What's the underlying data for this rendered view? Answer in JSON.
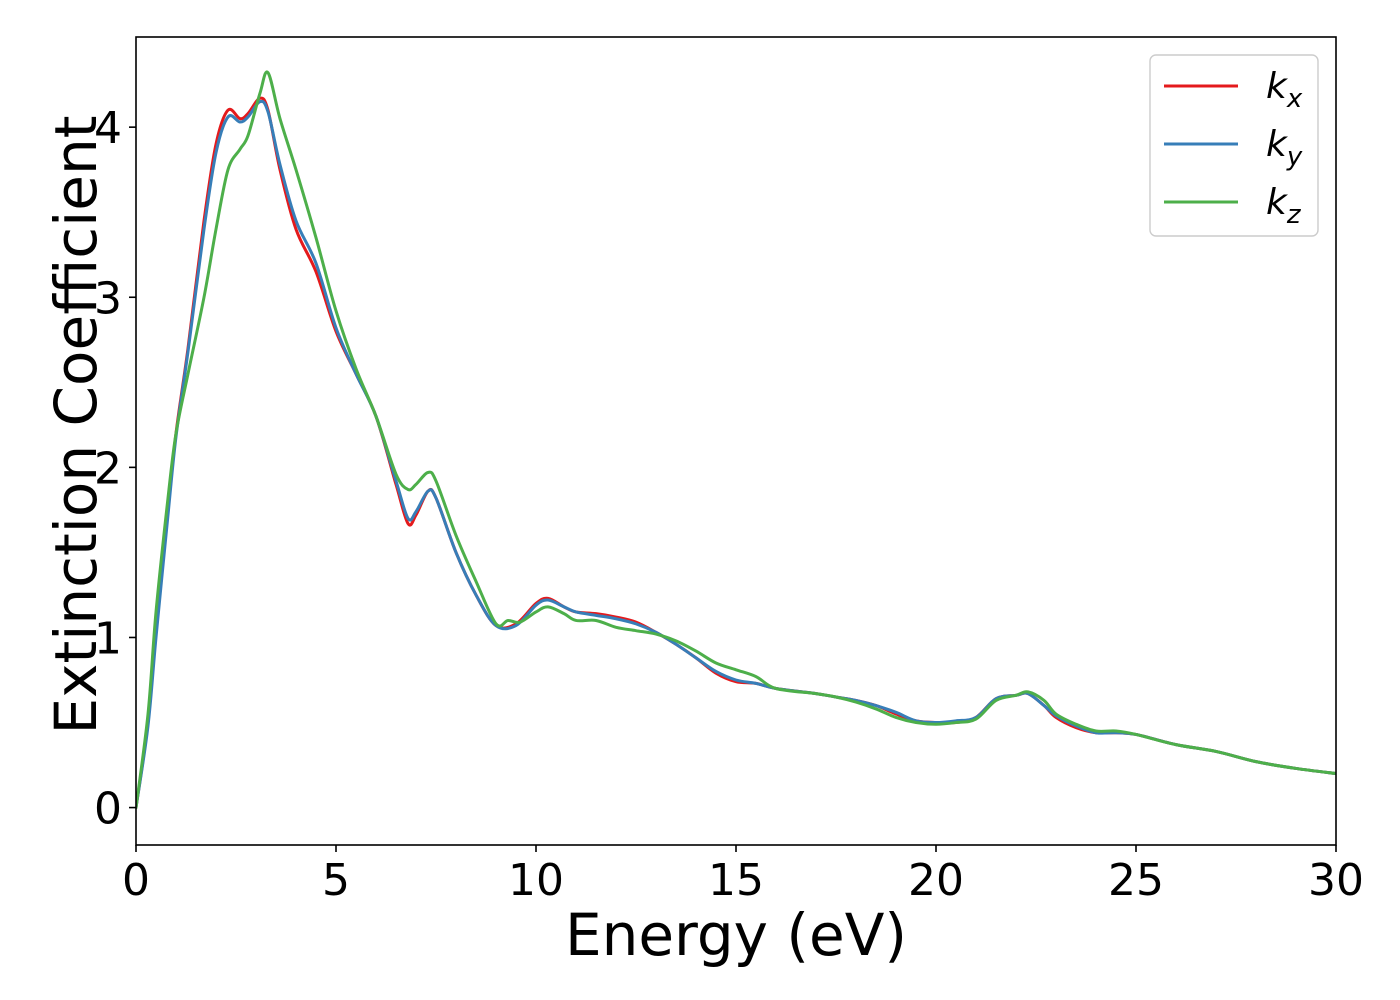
{
  "chart_data": {
    "type": "line",
    "title": "",
    "xlabel": "Energy (eV)",
    "ylabel": "Extinction Coefficient",
    "xlim": [
      0,
      30
    ],
    "ylim": [
      -0.22,
      4.53
    ],
    "xticks": [
      0,
      5,
      10,
      15,
      20,
      25,
      30
    ],
    "yticks": [
      0,
      1,
      2,
      3,
      4
    ],
    "grid": false,
    "legend_position": "top-right",
    "series": [
      {
        "name": "k_x",
        "legend_base": "k",
        "legend_sub": "x",
        "color": "#e41a1c",
        "x": [
          0,
          0.3,
          0.5,
          0.8,
          1.0,
          1.3,
          1.7,
          2.0,
          2.3,
          2.6,
          2.8,
          3.1,
          3.3,
          3.6,
          4.0,
          4.5,
          5.0,
          5.5,
          6.0,
          6.5,
          6.8,
          7.0,
          7.3,
          7.5,
          8.0,
          8.5,
          9.0,
          9.5,
          10.0,
          10.3,
          10.7,
          11.0,
          11.5,
          12.0,
          12.5,
          13.0,
          13.5,
          14.0,
          14.5,
          15.0,
          15.5,
          16.0,
          17.0,
          17.5,
          18.0,
          18.5,
          19.0,
          19.5,
          20.0,
          20.5,
          21.0,
          21.5,
          22.0,
          22.3,
          22.7,
          23.0,
          23.5,
          24.0,
          24.5,
          25.0,
          26.0,
          27.0,
          28.0,
          29.0,
          30.0
        ],
        "y": [
          0.0,
          0.5,
          1.05,
          1.75,
          2.2,
          2.7,
          3.45,
          3.9,
          4.1,
          4.05,
          4.08,
          4.17,
          4.1,
          3.75,
          3.4,
          3.15,
          2.8,
          2.55,
          2.3,
          1.9,
          1.67,
          1.72,
          1.86,
          1.82,
          1.5,
          1.25,
          1.07,
          1.08,
          1.2,
          1.23,
          1.18,
          1.15,
          1.14,
          1.12,
          1.09,
          1.03,
          0.96,
          0.88,
          0.79,
          0.74,
          0.73,
          0.7,
          0.67,
          0.65,
          0.63,
          0.6,
          0.55,
          0.51,
          0.5,
          0.5,
          0.53,
          0.64,
          0.66,
          0.67,
          0.6,
          0.53,
          0.47,
          0.44,
          0.44,
          0.43,
          0.37,
          0.33,
          0.27,
          0.23,
          0.2
        ]
      },
      {
        "name": "k_y",
        "legend_base": "k",
        "legend_sub": "y",
        "color": "#377eb8",
        "x": [
          0,
          0.3,
          0.5,
          0.8,
          1.0,
          1.3,
          1.7,
          2.0,
          2.3,
          2.6,
          2.8,
          3.1,
          3.3,
          3.6,
          4.0,
          4.5,
          5.0,
          5.5,
          6.0,
          6.5,
          6.8,
          7.0,
          7.3,
          7.5,
          8.0,
          8.5,
          9.0,
          9.5,
          10.0,
          10.3,
          10.7,
          11.0,
          11.5,
          12.0,
          12.5,
          13.0,
          13.5,
          14.0,
          14.5,
          15.0,
          15.5,
          16.0,
          17.0,
          17.5,
          18.0,
          18.5,
          19.0,
          19.5,
          20.0,
          20.5,
          21.0,
          21.5,
          22.0,
          22.3,
          22.7,
          23.0,
          23.5,
          24.0,
          24.5,
          25.0,
          26.0,
          27.0,
          28.0,
          29.0,
          30.0
        ],
        "y": [
          0.0,
          0.48,
          1.0,
          1.72,
          2.18,
          2.68,
          3.4,
          3.85,
          4.06,
          4.03,
          4.06,
          4.15,
          4.09,
          3.78,
          3.45,
          3.2,
          2.82,
          2.55,
          2.3,
          1.92,
          1.7,
          1.74,
          1.86,
          1.82,
          1.5,
          1.25,
          1.07,
          1.07,
          1.19,
          1.22,
          1.18,
          1.15,
          1.13,
          1.11,
          1.08,
          1.03,
          0.96,
          0.88,
          0.8,
          0.75,
          0.73,
          0.7,
          0.67,
          0.65,
          0.63,
          0.6,
          0.56,
          0.51,
          0.5,
          0.51,
          0.53,
          0.64,
          0.66,
          0.67,
          0.6,
          0.54,
          0.48,
          0.44,
          0.44,
          0.43,
          0.37,
          0.33,
          0.27,
          0.23,
          0.2
        ]
      },
      {
        "name": "k_z",
        "legend_base": "k",
        "legend_sub": "z",
        "color": "#4daf4a",
        "x": [
          0,
          0.3,
          0.5,
          0.8,
          1.0,
          1.3,
          1.7,
          2.0,
          2.3,
          2.6,
          2.8,
          3.1,
          3.3,
          3.6,
          4.0,
          4.5,
          5.0,
          5.5,
          6.0,
          6.5,
          6.8,
          7.0,
          7.3,
          7.5,
          8.0,
          8.5,
          9.0,
          9.3,
          9.6,
          10.0,
          10.3,
          10.7,
          11.0,
          11.5,
          12.0,
          12.5,
          13.0,
          13.5,
          14.0,
          14.5,
          15.0,
          15.5,
          16.0,
          17.0,
          17.5,
          18.0,
          18.5,
          19.0,
          19.5,
          20.0,
          20.5,
          21.0,
          21.5,
          22.0,
          22.3,
          22.7,
          23.0,
          23.5,
          24.0,
          24.5,
          25.0,
          26.0,
          27.0,
          28.0,
          29.0,
          30.0
        ],
        "y": [
          0.0,
          0.55,
          1.15,
          1.82,
          2.2,
          2.55,
          3.0,
          3.4,
          3.75,
          3.87,
          3.95,
          4.2,
          4.32,
          4.05,
          3.75,
          3.35,
          2.92,
          2.58,
          2.3,
          1.96,
          1.87,
          1.9,
          1.97,
          1.92,
          1.6,
          1.33,
          1.08,
          1.1,
          1.09,
          1.15,
          1.18,
          1.14,
          1.1,
          1.1,
          1.06,
          1.04,
          1.02,
          0.98,
          0.92,
          0.85,
          0.81,
          0.77,
          0.7,
          0.67,
          0.65,
          0.62,
          0.58,
          0.53,
          0.5,
          0.49,
          0.5,
          0.52,
          0.63,
          0.66,
          0.68,
          0.63,
          0.55,
          0.49,
          0.45,
          0.45,
          0.43,
          0.37,
          0.33,
          0.27,
          0.23,
          0.2
        ]
      }
    ]
  }
}
